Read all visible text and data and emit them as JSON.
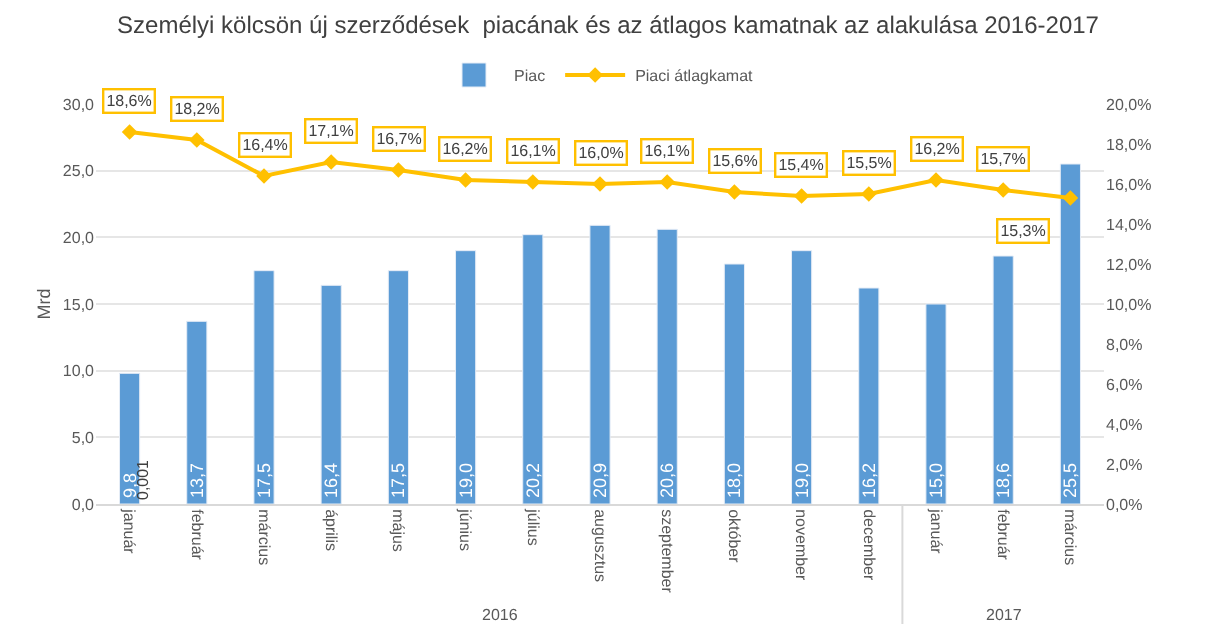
{
  "chart_data": {
    "type": "bar",
    "title": "Személyi kölcsön új szerződések  piacának és az átlagos kamatnak az alakulása 2016-2017",
    "ylabel": "Mrd",
    "categories": [
      "január",
      "február",
      "március",
      "április",
      "május",
      "június",
      "július",
      "augusztus",
      "szeptember",
      "október",
      "november",
      "december",
      "január",
      "február",
      "március"
    ],
    "series": [
      {
        "name": "Piac",
        "color": "#5b9bd5",
        "values": [
          9.8,
          13.7,
          17.5,
          16.4,
          17.5,
          19.0,
          20.2,
          20.9,
          20.6,
          18.0,
          19.0,
          16.2,
          15.0,
          18.6,
          25.5
        ],
        "value_labels": [
          "9,8",
          "13,7",
          "17,5",
          "16,4",
          "17,5",
          "19,0",
          "20,2",
          "20,9",
          "20,6",
          "18,0",
          "19,0",
          "16,2",
          "15,0",
          "18,6",
          "25,5"
        ]
      },
      {
        "name": "Piaci átlagkamat",
        "type": "line",
        "axis": "y2",
        "color": "#ffc000",
        "marker": "diamond",
        "line_style": "solid",
        "values": [
          18.6,
          18.2,
          16.4,
          17.1,
          16.7,
          16.2,
          16.1,
          16.0,
          16.1,
          15.6,
          15.4,
          15.5,
          16.2,
          15.7,
          15.3
        ],
        "value_labels": [
          "18,6%",
          "18,2%",
          "16,4%",
          "17,1%",
          "16,7%",
          "16,2%",
          "16,1%",
          "16,0%",
          "16,1%",
          "15,6%",
          "15,4%",
          "15,5%",
          "16,2%",
          "15,7%",
          "15,3%"
        ]
      }
    ],
    "ylim": [
      0,
      30
    ],
    "yticks": [
      {
        "value": 0,
        "label": "0,0"
      },
      {
        "value": 5,
        "label": "5,0"
      },
      {
        "value": 10,
        "label": "10,0"
      },
      {
        "value": 15,
        "label": "15,0"
      },
      {
        "value": 20,
        "label": "20,0"
      },
      {
        "value": 25,
        "label": "25,0"
      },
      {
        "value": 30,
        "label": "30,0"
      }
    ],
    "y2lim": [
      0,
      20
    ],
    "y2ticks": [
      {
        "value": 0,
        "label": "0,0%"
      },
      {
        "value": 2,
        "label": "2,0%"
      },
      {
        "value": 4,
        "label": "4,0%"
      },
      {
        "value": 6,
        "label": "6,0%"
      },
      {
        "value": 8,
        "label": "8,0%"
      },
      {
        "value": 10,
        "label": "10,0%"
      },
      {
        "value": 12,
        "label": "12,0%"
      },
      {
        "value": 14,
        "label": "14,0%"
      },
      {
        "value": 16,
        "label": "16,0%"
      },
      {
        "value": 18,
        "label": "18,0%"
      },
      {
        "value": 20,
        "label": "20,0%"
      }
    ],
    "grid": "y",
    "legend": "top",
    "annotations": [
      {
        "text": "0,001",
        "x": "január",
        "y": 0.001
      },
      "2016",
      "2017"
    ]
  }
}
